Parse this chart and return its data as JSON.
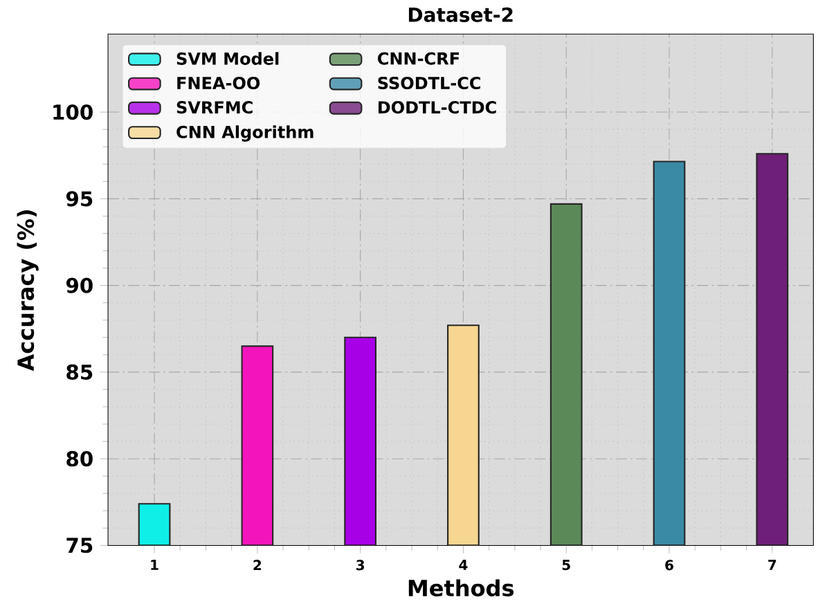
{
  "chart_data": {
    "type": "bar",
    "title": "Dataset-2",
    "xlabel": "Methods",
    "ylabel": "Accuracy (%)",
    "categories": [
      "1",
      "2",
      "3",
      "4",
      "5",
      "6",
      "7"
    ],
    "series": [
      {
        "name": "SVM Model",
        "color": "#10eee8",
        "values": [
          77.4,
          null,
          null,
          null,
          null,
          null,
          null
        ]
      },
      {
        "name": "FNEA-OO",
        "color": "#f414bc",
        "values": [
          null,
          86.5,
          null,
          null,
          null,
          null,
          null
        ]
      },
      {
        "name": "SVRFMC",
        "color": "#a800e6",
        "values": [
          null,
          null,
          87.0,
          null,
          null,
          null,
          null
        ]
      },
      {
        "name": "CNN Algorithm",
        "color": "#f6d690",
        "values": [
          null,
          null,
          null,
          87.7,
          null,
          null,
          null
        ]
      },
      {
        "name": "CNN-CRF",
        "color": "#5b8a58",
        "values": [
          null,
          null,
          null,
          null,
          94.7,
          null,
          null
        ]
      },
      {
        "name": "SSODTL-CC",
        "color": "#3a8aa6",
        "values": [
          null,
          null,
          null,
          null,
          null,
          97.15,
          null
        ]
      },
      {
        "name": "DODTL-CTDC",
        "color": "#6e1f78",
        "values": [
          null,
          null,
          null,
          null,
          null,
          null,
          97.6
        ]
      }
    ],
    "ylim": [
      75,
      104.5
    ],
    "yticks": [
      75,
      80,
      85,
      90,
      95,
      100
    ],
    "grid": true,
    "legend": "top left"
  }
}
